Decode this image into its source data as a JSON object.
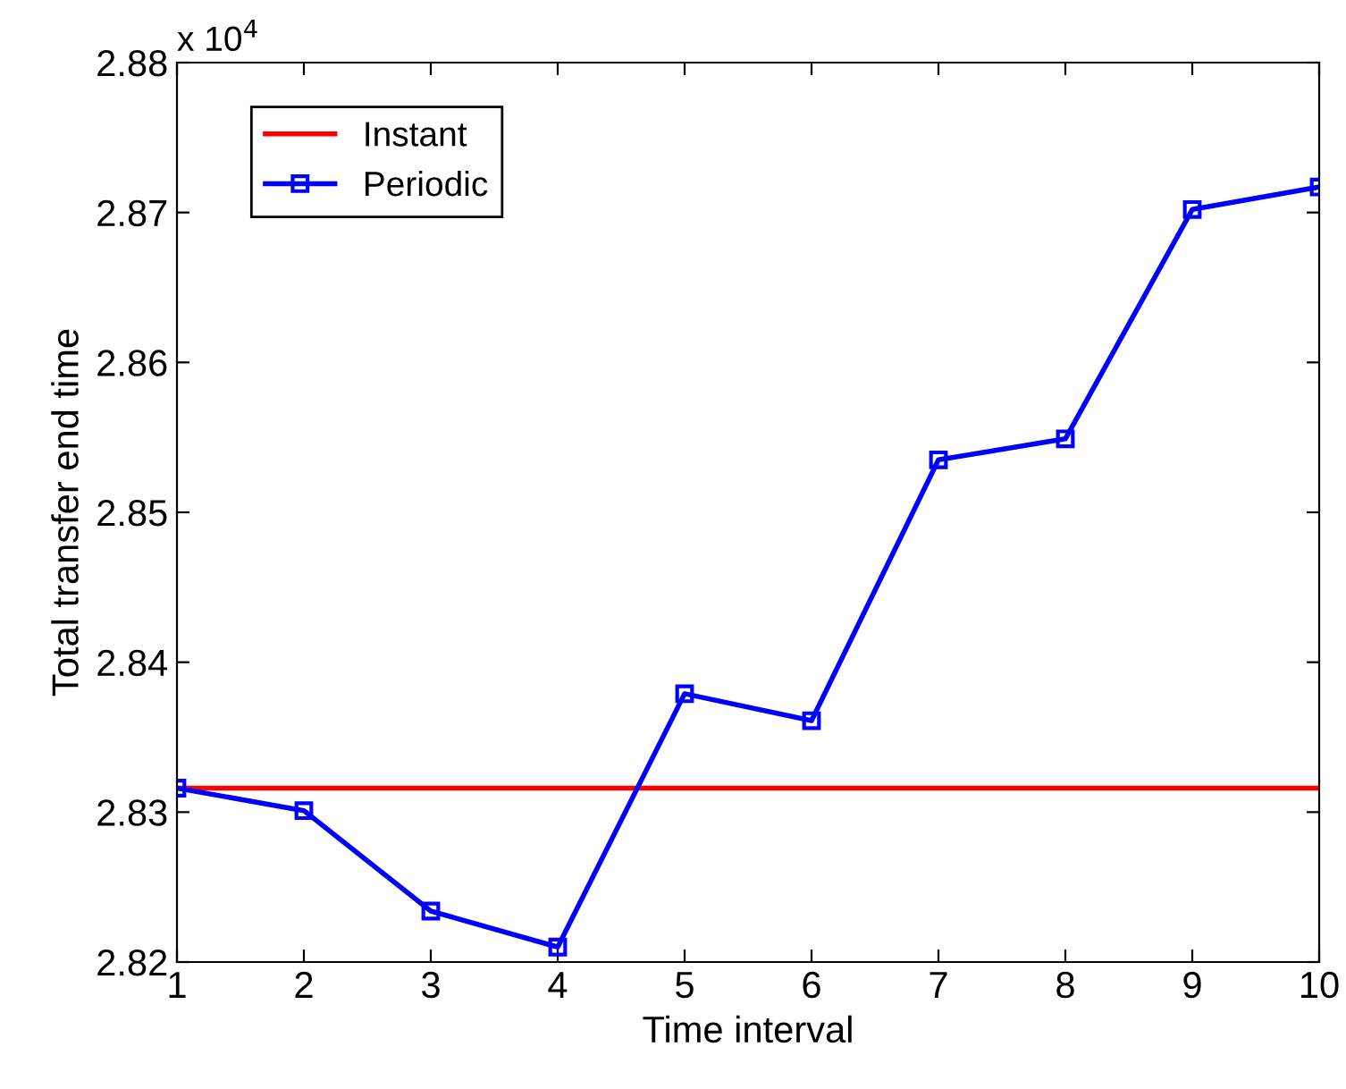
{
  "chart_data": {
    "type": "line",
    "xlabel": "Time interval",
    "ylabel": "Total transfer end time",
    "annotations": [
      "x 10$^{4}$"
    ],
    "x": [
      1,
      2,
      3,
      4,
      5,
      6,
      7,
      8,
      9,
      10
    ],
    "series": [
      {
        "name": "Instant",
        "color": "#ff0000",
        "marker": "none",
        "values": [
          2.8316,
          2.8316,
          2.8316,
          2.8316,
          2.8316,
          2.8316,
          2.8316,
          2.8316,
          2.8316,
          2.8316
        ]
      },
      {
        "name": "Periodic",
        "color": "#0000ff",
        "marker": "square",
        "values": [
          2.8316,
          2.8301,
          2.8234,
          2.821,
          2.8379,
          2.8361,
          2.8535,
          2.8549,
          2.8702,
          2.8717
        ]
      }
    ],
    "xlim": [
      1,
      10
    ],
    "xticks": [
      1,
      2,
      3,
      4,
      5,
      6,
      7,
      8,
      9,
      10
    ],
    "ylim": [
      2.82,
      2.88
    ],
    "yticks": [
      2.82,
      2.83,
      2.84,
      2.85,
      2.86,
      2.87,
      2.88
    ],
    "grid": false,
    "legend": "top left",
    "line_style": "solid"
  }
}
